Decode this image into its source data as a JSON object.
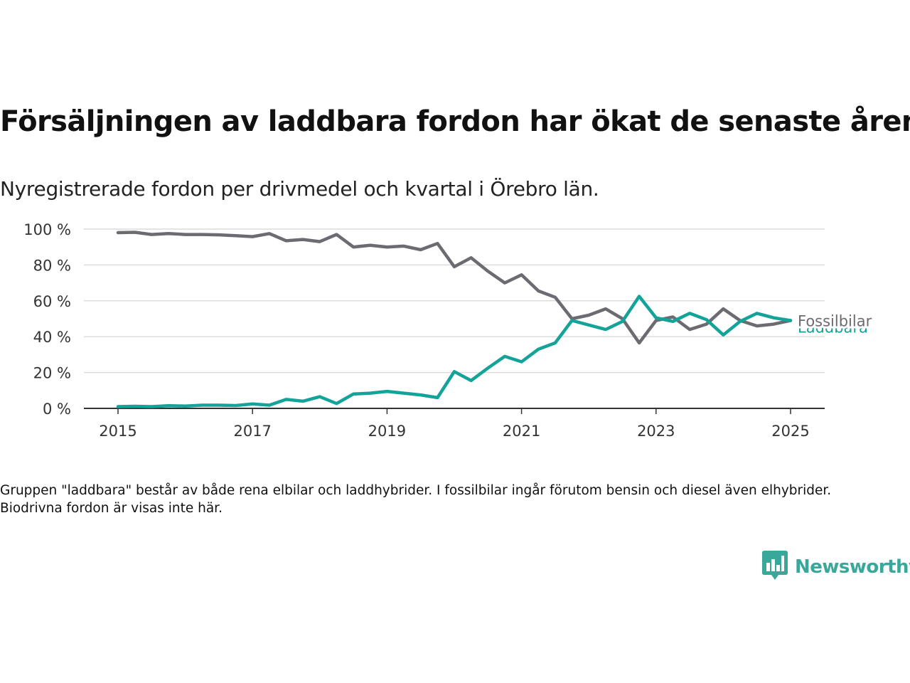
{
  "header": {
    "title": "Försäljningen av laddbara fordon har ökat de senaste åren",
    "subtitle": "Nyregistrerade fordon per drivmedel och kvartal i Örebro län."
  },
  "footer": {
    "note": "Gruppen \"laddbara\" består av både rena elbilar och laddhybrider. I fossilbilar ingår förutom bensin och diesel även elhybrider. Biodrivna fordon är visas inte här.",
    "brand": "Newsworthy"
  },
  "colors": {
    "fossil": "#6d6b72",
    "laddbara": "#13a399",
    "grid": "#dcdcdc",
    "axis": "#333333",
    "brand": "#3aa79b"
  },
  "icons": {
    "logo": "bar-chart-speech-bubble-icon"
  },
  "chart_data": {
    "type": "line",
    "title": "Försäljningen av laddbara fordon har ökat de senaste åren",
    "subtitle": "Nyregistrerade fordon per drivmedel och kvartal i Örebro län.",
    "xlabel": "",
    "ylabel": "",
    "xlim": [
      2014.5,
      2025.5
    ],
    "ylim": [
      0,
      100
    ],
    "x_ticks": [
      2015,
      2017,
      2019,
      2021,
      2023,
      2025
    ],
    "x_tick_labels": [
      "2015",
      "2017",
      "2019",
      "2021",
      "2023",
      "2025"
    ],
    "y_ticks": [
      0,
      20,
      40,
      60,
      80,
      100
    ],
    "y_tick_labels": [
      "0 %",
      "20 %",
      "40 %",
      "60 %",
      "80 %",
      "100 %"
    ],
    "grid": "horizontal",
    "legend": "direct labels at line ends",
    "x": [
      2015.0,
      2015.25,
      2015.5,
      2015.75,
      2016.0,
      2016.25,
      2016.5,
      2016.75,
      2017.0,
      2017.25,
      2017.5,
      2017.75,
      2018.0,
      2018.25,
      2018.5,
      2018.75,
      2019.0,
      2019.25,
      2019.5,
      2019.75,
      2020.0,
      2020.25,
      2020.5,
      2020.75,
      2021.0,
      2021.25,
      2021.5,
      2021.75,
      2022.0,
      2022.25,
      2022.5,
      2022.75,
      2023.0,
      2023.25,
      2023.5,
      2023.75,
      2024.0,
      2024.25,
      2024.5,
      2024.75,
      2025.0
    ],
    "series": [
      {
        "name": "Fossilbilar",
        "color": "#6d6b72",
        "values": [
          98,
          98.2,
          97,
          97.5,
          97,
          97,
          96.8,
          96.3,
          95.8,
          97.5,
          93.5,
          94.2,
          93,
          97,
          90,
          91,
          90,
          90.5,
          88.5,
          92,
          79,
          84,
          76.5,
          70,
          74.5,
          65.5,
          62,
          50,
          52,
          55.5,
          50,
          36.5,
          49,
          51,
          44,
          47,
          55.5,
          49,
          46,
          47,
          49
        ]
      },
      {
        "name": "Laddbara",
        "color": "#13a399",
        "values": [
          1,
          1.2,
          1,
          1.5,
          1.3,
          1.8,
          1.8,
          1.6,
          2.5,
          1.8,
          5,
          4,
          6.5,
          2.7,
          8,
          8.5,
          9.5,
          8.5,
          7.5,
          6,
          20.5,
          15.5,
          22.5,
          29,
          26,
          33,
          36.5,
          49,
          46.5,
          44,
          48.5,
          62.5,
          50.5,
          48.5,
          53,
          49.5,
          41,
          48.5,
          53,
          50.5,
          49
        ]
      }
    ],
    "series_labels": [
      "Fossilbilar",
      "Laddbara"
    ]
  }
}
